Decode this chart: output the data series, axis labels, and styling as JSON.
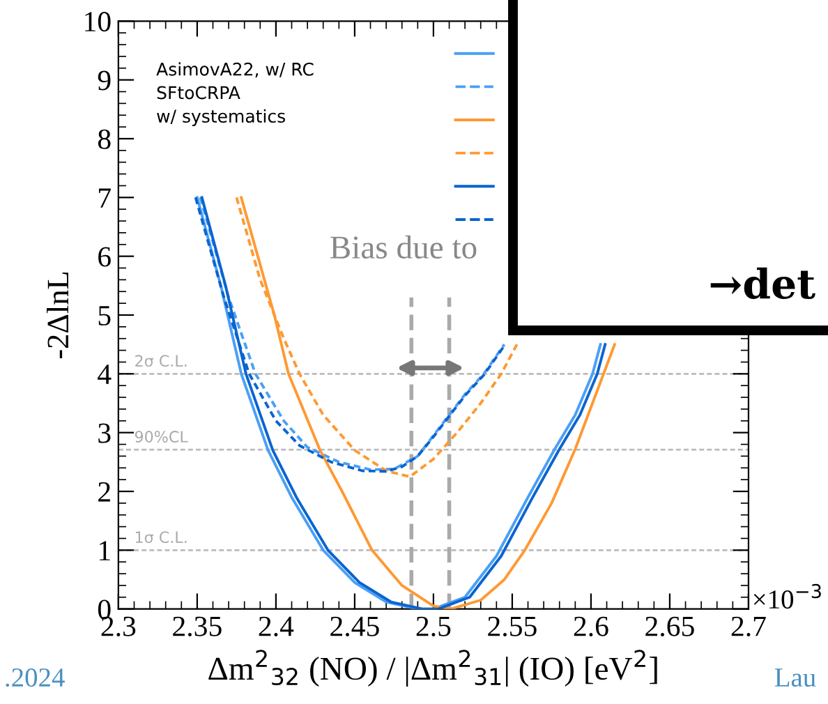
{
  "chart_data": {
    "type": "line",
    "xlabel": "Δm$^{2}$$_{32}$ (NO) / |Δm$^{2}$$_{31}$| (IO) [eV$^{2}$]",
    "ylabel": "-2ΔlnL",
    "xlim": [
      2.3,
      2.7
    ],
    "xticks": [
      2.3,
      2.35,
      2.4,
      2.45,
      2.5,
      2.55,
      2.6,
      2.65,
      2.7
    ],
    "ylim": [
      0,
      10
    ],
    "yticks": [
      0,
      1,
      2,
      3,
      4,
      5,
      6,
      7,
      8,
      9,
      10
    ],
    "grid": false,
    "marker": "none",
    "series": [
      {
        "color": "#4a9ff5",
        "line_style": "solid",
        "x": [
          2.35,
          2.365,
          2.378,
          2.395,
          2.41,
          2.43,
          2.45,
          2.47,
          2.49,
          2.5,
          2.52,
          2.54,
          2.56,
          2.577,
          2.59,
          2.601,
          2.606
        ],
        "values": [
          7,
          5.5,
          4,
          2.7,
          1.9,
          1.0,
          0.45,
          0.12,
          0,
          0,
          0.2,
          0.9,
          1.9,
          2.72,
          3.3,
          4.0,
          4.5
        ]
      },
      {
        "color": "#4a9ff5",
        "line_style": "dashed",
        "x": [
          2.352,
          2.37,
          2.387,
          2.405,
          2.42,
          2.44,
          2.46,
          2.475,
          2.49,
          2.5,
          2.51,
          2.52,
          2.532,
          2.545
        ],
        "values": [
          7,
          5.3,
          4,
          3.2,
          2.75,
          2.5,
          2.37,
          2.38,
          2.6,
          2.95,
          3.3,
          3.65,
          4.0,
          4.5
        ]
      },
      {
        "color": "#ff9933",
        "line_style": "solid",
        "x": [
          2.378,
          2.399,
          2.408,
          2.428,
          2.442,
          2.461,
          2.48,
          2.5,
          2.511,
          2.53,
          2.545,
          2.558,
          2.575,
          2.59,
          2.608,
          2.615
        ],
        "values": [
          7,
          5,
          4,
          2.7,
          2,
          1,
          0.4,
          0.05,
          0,
          0.15,
          0.5,
          1,
          1.8,
          2.72,
          4,
          4.5
        ]
      },
      {
        "color": "#ff9933",
        "line_style": "dashed",
        "x": [
          2.375,
          2.39,
          2.405,
          2.415,
          2.43,
          2.45,
          2.47,
          2.485,
          2.5,
          2.515,
          2.53,
          2.543,
          2.553
        ],
        "values": [
          7,
          5.6,
          4.6,
          4.0,
          3.3,
          2.7,
          2.35,
          2.25,
          2.55,
          3.0,
          3.5,
          4.0,
          4.5
        ]
      },
      {
        "color": "#0a64d0",
        "line_style": "solid",
        "x": [
          2.353,
          2.368,
          2.381,
          2.398,
          2.413,
          2.433,
          2.453,
          2.473,
          2.493,
          2.503,
          2.523,
          2.543,
          2.563,
          2.58,
          2.593,
          2.604,
          2.609
        ],
        "values": [
          7,
          5.5,
          4,
          2.7,
          1.9,
          1.0,
          0.45,
          0.12,
          0,
          0,
          0.2,
          0.9,
          1.9,
          2.72,
          3.3,
          4.0,
          4.5
        ]
      },
      {
        "color": "#0a64d0",
        "line_style": "dashed",
        "x": [
          2.349,
          2.367,
          2.383,
          2.4,
          2.415,
          2.435,
          2.455,
          2.47,
          2.48,
          2.49,
          2.5,
          2.51,
          2.52,
          2.532,
          2.545
        ],
        "values": [
          7,
          5.3,
          4,
          3.2,
          2.78,
          2.5,
          2.35,
          2.34,
          2.42,
          2.6,
          2.93,
          3.28,
          3.63,
          3.98,
          4.48
        ]
      }
    ],
    "ref_lines": [
      {
        "axis": "y",
        "value": 4,
        "label": "2σ C.L.",
        "color": "#bbbbbb",
        "line_style": "dashed"
      },
      {
        "axis": "y",
        "value": 2.71,
        "label": "90%CL",
        "color": "#bbbbbb",
        "line_style": "dashed"
      },
      {
        "axis": "y",
        "value": 1,
        "label": "1σ C.L.",
        "color": "#bbbbbb",
        "line_style": "dashed"
      },
      {
        "axis": "x",
        "value": 2.486,
        "color": "#aaaaaa",
        "line_style": "dashed"
      },
      {
        "axis": "x",
        "value": 2.51,
        "color": "#aaaaaa",
        "line_style": "dashed"
      }
    ],
    "annotations": [
      "AsimovA22, w/ RC\nSFtoCRPA\nw/ systematics",
      "Bias due to",
      "→det",
      "×10$^{−3}$",
      ".2024",
      "Lau"
    ]
  }
}
